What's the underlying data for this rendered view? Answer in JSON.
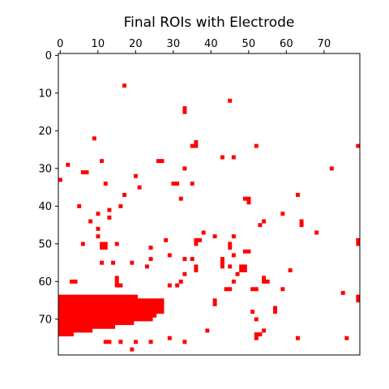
{
  "chart_data": {
    "type": "heatmap",
    "title": "Final ROIs with Electrode",
    "xlabel": "",
    "ylabel": "",
    "grid_size": [
      80,
      80
    ],
    "xlim": [
      -0.5,
      79.5
    ],
    "ylim": [
      79.5,
      -0.5
    ],
    "x_ticks": [
      "0",
      "10",
      "20",
      "30",
      "40",
      "50",
      "60",
      "70"
    ],
    "y_ticks": [
      "0",
      "10",
      "20",
      "30",
      "40",
      "50",
      "60",
      "70"
    ],
    "x_tick_position": "top",
    "grid": false,
    "colors": {
      "roi": "#ff0000",
      "background": "#ffffff",
      "axis": "#000000"
    },
    "roi_pixels": [
      [
        17,
        8
      ],
      [
        45,
        12
      ],
      [
        33,
        14
      ],
      [
        33,
        15
      ],
      [
        9,
        22
      ],
      [
        36,
        23
      ],
      [
        35,
        24
      ],
      [
        36,
        24
      ],
      [
        52,
        24
      ],
      [
        79,
        24
      ],
      [
        43,
        27
      ],
      [
        46,
        27
      ],
      [
        11,
        28
      ],
      [
        26,
        28
      ],
      [
        27,
        28
      ],
      [
        2,
        29
      ],
      [
        6,
        31
      ],
      [
        7,
        31
      ],
      [
        33,
        30
      ],
      [
        72,
        30
      ],
      [
        20,
        32
      ],
      [
        0,
        33
      ],
      [
        12,
        34
      ],
      [
        30,
        34
      ],
      [
        31,
        34
      ],
      [
        35,
        34
      ],
      [
        21,
        35
      ],
      [
        17,
        37
      ],
      [
        63,
        37
      ],
      [
        32,
        38
      ],
      [
        49,
        38
      ],
      [
        50,
        38
      ],
      [
        50,
        39
      ],
      [
        5,
        40
      ],
      [
        16,
        40
      ],
      [
        10,
        42
      ],
      [
        13,
        41
      ],
      [
        59,
        42
      ],
      [
        13,
        43
      ],
      [
        8,
        44
      ],
      [
        64,
        44
      ],
      [
        64,
        45
      ],
      [
        54,
        44
      ],
      [
        53,
        45
      ],
      [
        10,
        46
      ],
      [
        38,
        47
      ],
      [
        68,
        47
      ],
      [
        10,
        48
      ],
      [
        41,
        48
      ],
      [
        46,
        48
      ],
      [
        28,
        49
      ],
      [
        36,
        49
      ],
      [
        37,
        49
      ],
      [
        36,
        50
      ],
      [
        6,
        50
      ],
      [
        11,
        50
      ],
      [
        12,
        50
      ],
      [
        15,
        50
      ],
      [
        11,
        51
      ],
      [
        12,
        51
      ],
      [
        24,
        51
      ],
      [
        45,
        50
      ],
      [
        45,
        51
      ],
      [
        49,
        52
      ],
      [
        50,
        52
      ],
      [
        79,
        49
      ],
      [
        79,
        50
      ],
      [
        46,
        53
      ],
      [
        29,
        53
      ],
      [
        24,
        54
      ],
      [
        33,
        54
      ],
      [
        35,
        54
      ],
      [
        43,
        54
      ],
      [
        43,
        55
      ],
      [
        43,
        56
      ],
      [
        11,
        55
      ],
      [
        14,
        55
      ],
      [
        19,
        55
      ],
      [
        23,
        56
      ],
      [
        36,
        56
      ],
      [
        36,
        57
      ],
      [
        45,
        56
      ],
      [
        48,
        56
      ],
      [
        49,
        56
      ],
      [
        49,
        57
      ],
      [
        48,
        57
      ],
      [
        61,
        57
      ],
      [
        33,
        58
      ],
      [
        47,
        58
      ],
      [
        15,
        59
      ],
      [
        15,
        60
      ],
      [
        15,
        61
      ],
      [
        3,
        60
      ],
      [
        4,
        60
      ],
      [
        32,
        60
      ],
      [
        46,
        60
      ],
      [
        54,
        59
      ],
      [
        54,
        60
      ],
      [
        55,
        60
      ],
      [
        29,
        61
      ],
      [
        31,
        61
      ],
      [
        16,
        61
      ],
      [
        44,
        62
      ],
      [
        45,
        62
      ],
      [
        51,
        62
      ],
      [
        52,
        62
      ],
      [
        59,
        62
      ],
      [
        75,
        63
      ],
      [
        79,
        64
      ],
      [
        79,
        65
      ],
      [
        41,
        65
      ],
      [
        41,
        66
      ],
      [
        57,
        67
      ],
      [
        57,
        68
      ],
      [
        51,
        68
      ],
      [
        52,
        70
      ],
      [
        54,
        73
      ],
      [
        39,
        73
      ],
      [
        29,
        75
      ],
      [
        33,
        76
      ],
      [
        52,
        74
      ],
      [
        53,
        74
      ],
      [
        52,
        75
      ],
      [
        63,
        75
      ],
      [
        76,
        75
      ],
      [
        12,
        76
      ],
      [
        13,
        76
      ],
      [
        16,
        76
      ],
      [
        20,
        76
      ],
      [
        24,
        76
      ],
      [
        19,
        78
      ]
    ],
    "roi_runs": [
      [
        64,
        0,
        20
      ],
      [
        65,
        0,
        27
      ],
      [
        66,
        0,
        27
      ],
      [
        67,
        0,
        27
      ],
      [
        68,
        0,
        27
      ],
      [
        69,
        0,
        25
      ],
      [
        70,
        0,
        24
      ],
      [
        71,
        0,
        19
      ],
      [
        72,
        0,
        14
      ],
      [
        73,
        0,
        8
      ],
      [
        74,
        0,
        3
      ]
    ]
  }
}
